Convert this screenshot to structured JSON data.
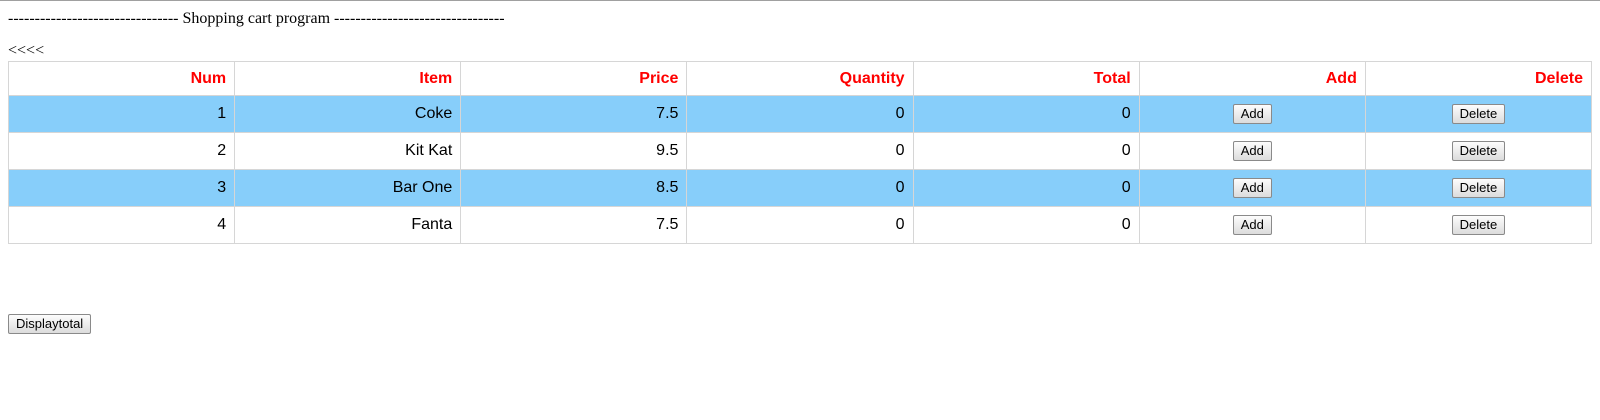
{
  "page": {
    "title_line": "-------------------------------- Shopping cart program --------------------------------",
    "back_link": "<<<<"
  },
  "table": {
    "headers": [
      "Num",
      "Item",
      "Price",
      "Quantity",
      "Total",
      "Add",
      "Delete"
    ],
    "rows": [
      {
        "num": "1",
        "item": "Coke",
        "price": "7.5",
        "quantity": "0",
        "total": "0",
        "add_label": "Add",
        "delete_label": "Delete"
      },
      {
        "num": "2",
        "item": "Kit Kat",
        "price": "9.5",
        "quantity": "0",
        "total": "0",
        "add_label": "Add",
        "delete_label": "Delete"
      },
      {
        "num": "3",
        "item": "Bar One",
        "price": "8.5",
        "quantity": "0",
        "total": "0",
        "add_label": "Add",
        "delete_label": "Delete"
      },
      {
        "num": "4",
        "item": "Fanta",
        "price": "7.5",
        "quantity": "0",
        "total": "0",
        "add_label": "Add",
        "delete_label": "Delete"
      }
    ]
  },
  "footer": {
    "display_total_label": "Displaytotal"
  },
  "colors": {
    "header_text": "#ff0000",
    "alt_row_bg": "#87cefa",
    "border": "#d6d6d6"
  }
}
